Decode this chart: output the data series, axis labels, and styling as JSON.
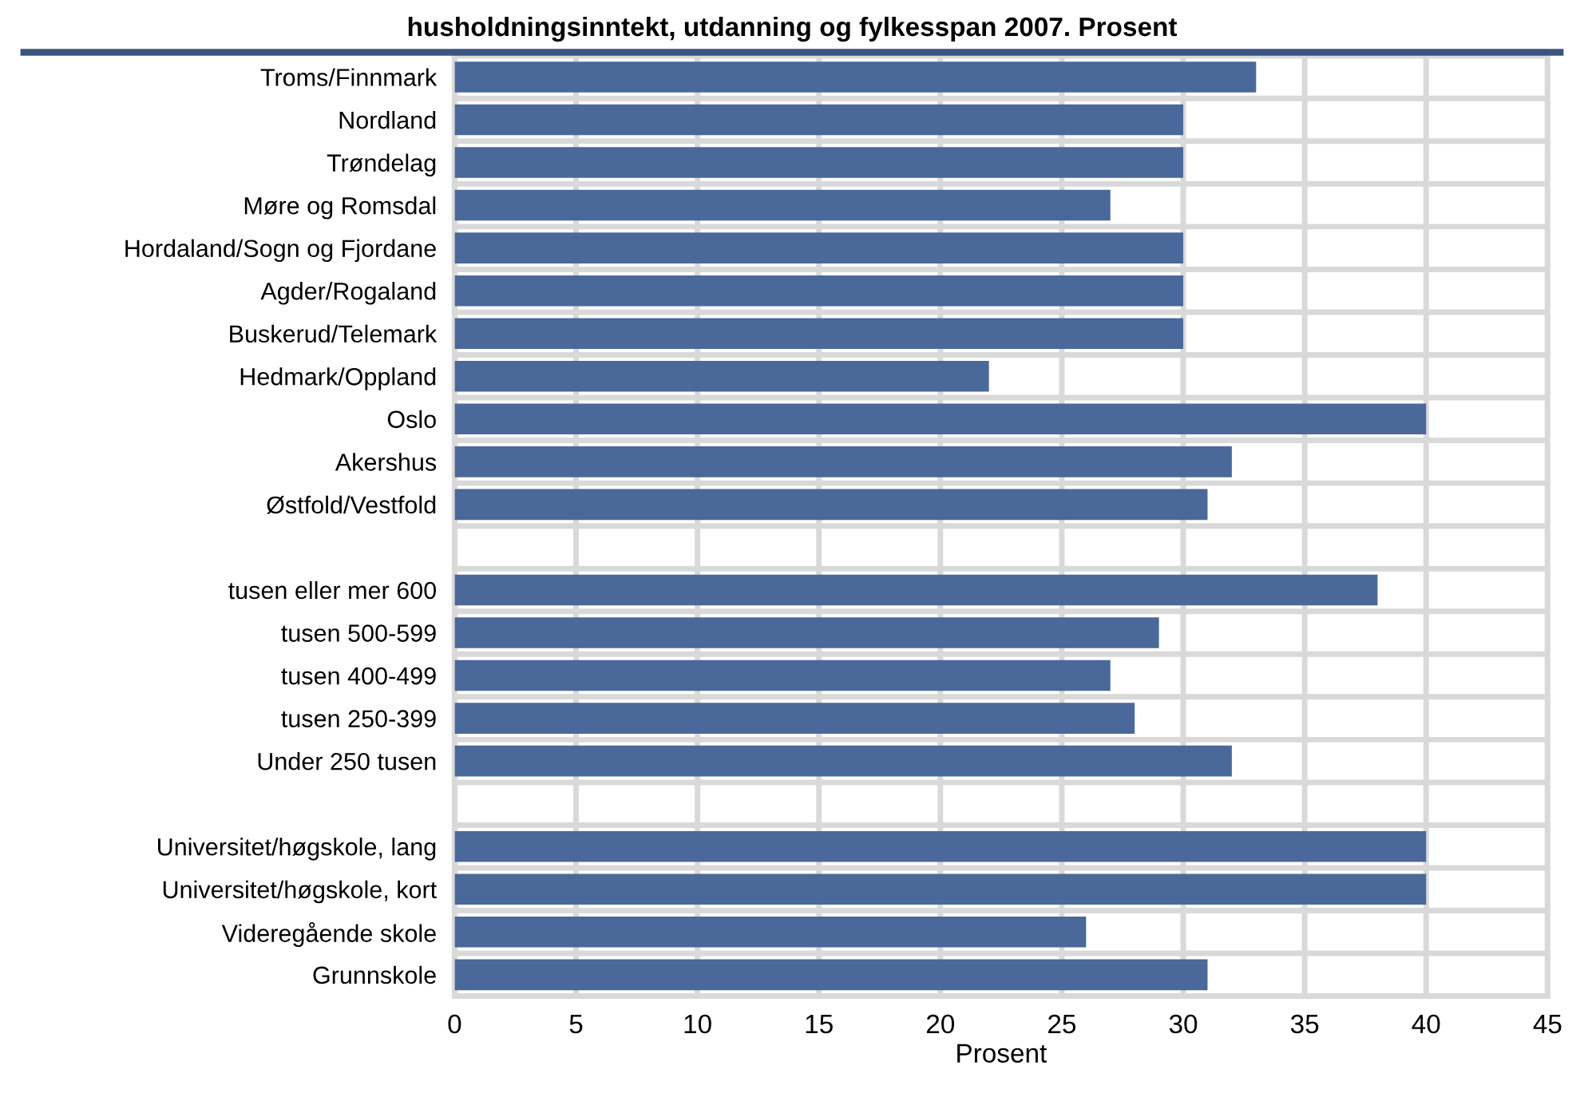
{
  "chart_data": {
    "type": "bar",
    "orientation": "horizontal",
    "title": "husholdningsinntekt, utdanning og fylkesspan 2007. Prosent",
    "xlabel": "Prosent",
    "categories": [
      "Troms/Finnmark",
      "Nordland",
      "Trøndelag",
      "Møre og Romsdal",
      "Hordaland/Sogn og Fjordane",
      "Agder/Rogaland",
      "Buskerud/Telemark",
      "Hedmark/Oppland",
      "Oslo",
      "Akershus",
      "Østfold/Vestfold",
      null,
      "tusen eller mer 600",
      "tusen 500-599",
      "tusen 400-499",
      "tusen 250-399",
      "Under 250 tusen",
      null,
      "Universitet/høgskole, lang",
      "Universitet/høgskole, kort",
      "Videregående skole",
      "Grunnskole"
    ],
    "values": [
      33,
      30,
      30,
      27,
      30,
      30,
      30,
      22,
      40,
      32,
      31,
      null,
      38,
      29,
      27,
      28,
      32,
      null,
      40,
      40,
      26,
      31
    ],
    "color": "#4a6899",
    "xlim": [
      0,
      45
    ],
    "xticks": [
      0,
      5,
      10,
      15,
      20,
      25,
      30,
      35,
      40,
      45
    ],
    "grid": true
  }
}
